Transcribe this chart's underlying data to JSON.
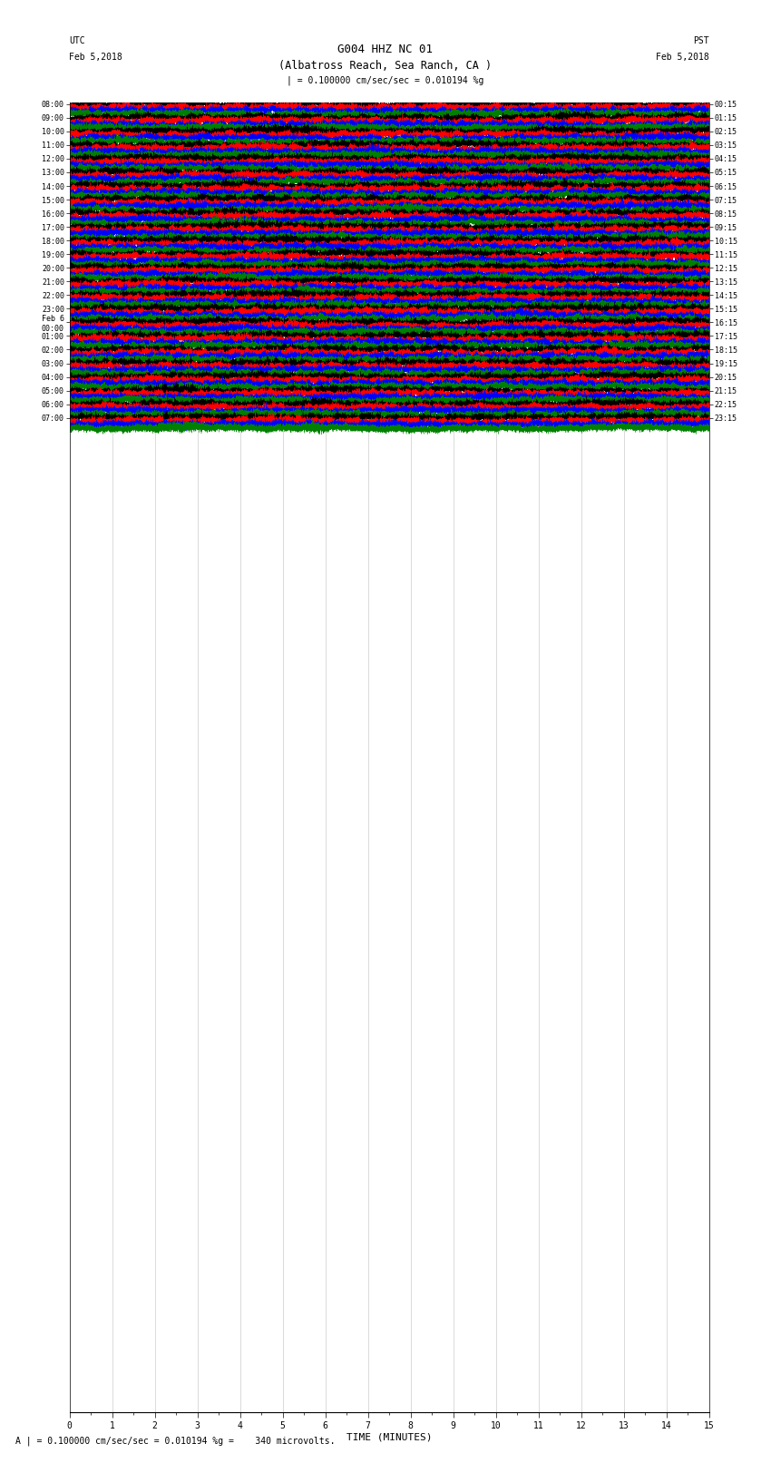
{
  "title_line1": "G004 HHZ NC 01",
  "title_line2": "(Albatross Reach, Sea Ranch, CA )",
  "scale_label": "| = 0.100000 cm/sec/sec = 0.010194 %g",
  "footer_label": "A | = 0.100000 cm/sec/sec = 0.010194 %g =    340 microvolts.",
  "xlabel": "TIME (MINUTES)",
  "utc_header": "UTC",
  "utc_date": "Feb 5,2018",
  "pst_header": "PST",
  "pst_date": "Feb 5,2018",
  "utc_labels": [
    "08:00",
    "09:00",
    "10:00",
    "11:00",
    "12:00",
    "13:00",
    "14:00",
    "15:00",
    "16:00",
    "17:00",
    "18:00",
    "19:00",
    "20:00",
    "21:00",
    "22:00",
    "23:00",
    "Feb 6\n00:00",
    "01:00",
    "02:00",
    "03:00",
    "04:00",
    "05:00",
    "06:00",
    "07:00"
  ],
  "pst_labels": [
    "00:15",
    "01:15",
    "02:15",
    "03:15",
    "04:15",
    "05:15",
    "06:15",
    "07:15",
    "08:15",
    "09:15",
    "10:15",
    "11:15",
    "12:15",
    "13:15",
    "14:15",
    "15:15",
    "16:15",
    "17:15",
    "18:15",
    "19:15",
    "20:15",
    "21:15",
    "22:15",
    "23:15"
  ],
  "colors": [
    "black",
    "red",
    "blue",
    "green"
  ],
  "num_rows": 24,
  "traces_per_row": 4,
  "minutes": 15,
  "noise_seed": 42,
  "bg_color": "white",
  "trace_linewidth": 0.25,
  "figsize": [
    8.5,
    16.13
  ],
  "dpi": 100,
  "xmin": 0,
  "xmax": 15
}
